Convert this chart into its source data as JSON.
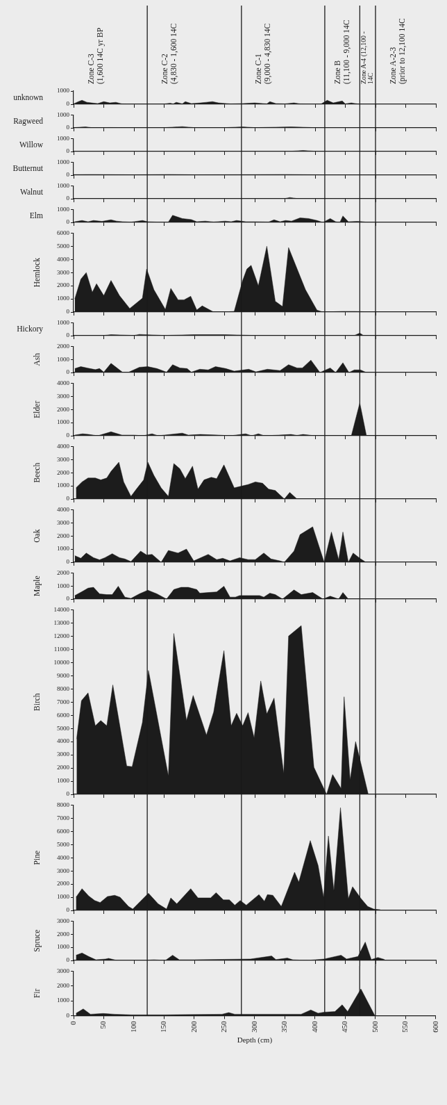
{
  "chart_data": [
    {
      "type": "area",
      "ylabel": "unknown",
      "color": "#1c1c1c",
      "tick_labels": "y",
      "xlim": [
        0,
        600
      ],
      "xticks": [
        0,
        50,
        100,
        150,
        200,
        250,
        300,
        350,
        400,
        450,
        500,
        550,
        600
      ],
      "ylim": [
        0,
        1000
      ],
      "yticks": [
        0,
        1000
      ],
      "annotations": [
        "Zone C-3\n(1,600 14C yr BP",
        "Zone C-2\n(4,830 - 1,600 14C",
        "Zone C-1\n(9,000 - 4,830 14C",
        "Zone B\n(11,100 - 9,000 14C",
        "Zone A-4 (12,100 -\n14C",
        "Zone A-2-3\n(prior to 12,100 14C"
      ],
      "ref_lines": [
        {
          "axis": "x",
          "value": 122
        },
        {
          "axis": "x",
          "value": 278
        },
        {
          "axis": "x",
          "value": 416
        },
        {
          "axis": "x",
          "value": 474
        },
        {
          "axis": "x",
          "value": 500
        }
      ],
      "x": [
        0,
        8,
        14,
        22,
        30,
        40,
        50,
        60,
        70,
        80,
        100,
        150,
        160,
        165,
        170,
        180,
        185,
        195,
        210,
        220,
        230,
        240,
        260,
        280,
        300,
        320,
        325,
        335,
        350,
        365,
        375,
        410,
        420,
        430,
        445,
        450,
        460,
        470,
        480,
        500
      ],
      "values": [
        30,
        200,
        300,
        150,
        100,
        50,
        200,
        100,
        150,
        30,
        20,
        20,
        80,
        20,
        150,
        30,
        200,
        50,
        100,
        150,
        200,
        100,
        30,
        50,
        100,
        30,
        200,
        50,
        30,
        100,
        30,
        20,
        300,
        100,
        250,
        30,
        100,
        30,
        0,
        0
      ]
    },
    {
      "type": "area",
      "ylabel": "Ragweed",
      "color": "#1c1c1c",
      "tick_labels": "y",
      "xlim": [
        0,
        600
      ],
      "xticks": [
        0,
        50,
        100,
        150,
        200,
        250,
        300,
        350,
        400,
        450,
        500,
        550,
        600
      ],
      "ylim": [
        0,
        1000
      ],
      "yticks": [
        0,
        1000
      ],
      "ref_lines": [
        {
          "axis": "x",
          "value": 122
        },
        {
          "axis": "x",
          "value": 278
        },
        {
          "axis": "x",
          "value": 416
        },
        {
          "axis": "x",
          "value": 474
        },
        {
          "axis": "x",
          "value": 500
        }
      ],
      "x": [
        0,
        10,
        20,
        30,
        60,
        100,
        150,
        180,
        200,
        250,
        280,
        300,
        360,
        380,
        400,
        450,
        500
      ],
      "values": [
        20,
        50,
        80,
        20,
        30,
        20,
        20,
        100,
        20,
        20,
        80,
        20,
        80,
        50,
        20,
        20,
        0
      ]
    },
    {
      "type": "area",
      "ylabel": "Willow",
      "color": "#1c1c1c",
      "tick_labels": "y",
      "xlim": [
        0,
        600
      ],
      "xticks": [
        0,
        50,
        100,
        150,
        200,
        250,
        300,
        350,
        400,
        450,
        500,
        550,
        600
      ],
      "ylim": [
        0,
        1000
      ],
      "yticks": [
        0,
        1000
      ],
      "ref_lines": [
        {
          "axis": "x",
          "value": 122
        },
        {
          "axis": "x",
          "value": 278
        },
        {
          "axis": "x",
          "value": 416
        },
        {
          "axis": "x",
          "value": 474
        },
        {
          "axis": "x",
          "value": 500
        }
      ],
      "x": [
        0,
        100,
        200,
        300,
        360,
        380,
        400,
        500
      ],
      "values": [
        20,
        20,
        20,
        20,
        20,
        80,
        20,
        0
      ]
    },
    {
      "type": "area",
      "ylabel": "Butternut",
      "color": "#1c1c1c",
      "tick_labels": "y",
      "xlim": [
        0,
        600
      ],
      "xticks": [
        0,
        50,
        100,
        150,
        200,
        250,
        300,
        350,
        400,
        450,
        500,
        550,
        600
      ],
      "ylim": [
        0,
        1000
      ],
      "yticks": [
        0,
        1000
      ],
      "ref_lines": [
        {
          "axis": "x",
          "value": 122
        },
        {
          "axis": "x",
          "value": 278
        },
        {
          "axis": "x",
          "value": 416
        },
        {
          "axis": "x",
          "value": 474
        },
        {
          "axis": "x",
          "value": 500
        }
      ],
      "x": [
        0,
        30,
        100,
        160,
        200,
        300,
        350,
        400,
        500
      ],
      "values": [
        40,
        50,
        30,
        50,
        30,
        40,
        50,
        30,
        0
      ]
    },
    {
      "type": "area",
      "ylabel": "Walnut",
      "color": "#1c1c1c",
      "tick_labels": "y",
      "xlim": [
        0,
        600
      ],
      "xticks": [
        0,
        50,
        100,
        150,
        200,
        250,
        300,
        350,
        400,
        450,
        500,
        550,
        600
      ],
      "ylim": [
        0,
        1000
      ],
      "yticks": [
        0,
        1000
      ],
      "ref_lines": [
        {
          "axis": "x",
          "value": 122
        },
        {
          "axis": "x",
          "value": 278
        },
        {
          "axis": "x",
          "value": 416
        },
        {
          "axis": "x",
          "value": 474
        },
        {
          "axis": "x",
          "value": 500
        }
      ],
      "x": [
        0,
        100,
        200,
        300,
        350,
        358,
        370,
        400,
        500
      ],
      "values": [
        20,
        20,
        20,
        20,
        20,
        100,
        20,
        20,
        0
      ]
    },
    {
      "type": "area",
      "ylabel": "Elm",
      "color": "#1c1c1c",
      "tick_labels": "y",
      "xlim": [
        0,
        600
      ],
      "xticks": [
        0,
        50,
        100,
        150,
        200,
        250,
        300,
        350,
        400,
        450,
        500,
        550,
        600
      ],
      "ylim": [
        0,
        1000
      ],
      "yticks": [
        0,
        1000
      ],
      "ref_lines": [
        {
          "axis": "x",
          "value": 122
        },
        {
          "axis": "x",
          "value": 278
        },
        {
          "axis": "x",
          "value": 416
        },
        {
          "axis": "x",
          "value": 474
        },
        {
          "axis": "x",
          "value": 500
        }
      ],
      "x": [
        2,
        14,
        24,
        33,
        47,
        62,
        71,
        81,
        95,
        114,
        123,
        142,
        157,
        164,
        180,
        195,
        204,
        218,
        232,
        251,
        261,
        270,
        285,
        299,
        323,
        332,
        342,
        351,
        361,
        375,
        389,
        403,
        413,
        425,
        434,
        441,
        446,
        455,
        470,
        479,
        489
      ],
      "values": [
        50,
        150,
        50,
        150,
        80,
        200,
        100,
        50,
        20,
        150,
        50,
        20,
        30,
        550,
        300,
        220,
        50,
        100,
        30,
        100,
        50,
        150,
        50,
        50,
        30,
        200,
        50,
        150,
        100,
        350,
        300,
        150,
        0,
        300,
        50,
        0,
        500,
        50,
        80,
        50,
        0
      ]
    },
    {
      "type": "area",
      "ylabel": "Hemlock",
      "color": "#1c1c1c",
      "tick_labels": "y",
      "xlim": [
        0,
        600
      ],
      "xticks": [
        0,
        50,
        100,
        150,
        200,
        250,
        300,
        350,
        400,
        450,
        500,
        550,
        600
      ],
      "ylim": [
        0,
        6000
      ],
      "yticks": [
        0,
        1000,
        2000,
        3000,
        4000,
        5000,
        6000
      ],
      "ref_lines": [
        {
          "axis": "x",
          "value": 122
        },
        {
          "axis": "x",
          "value": 278
        },
        {
          "axis": "x",
          "value": 416
        },
        {
          "axis": "x",
          "value": 474
        },
        {
          "axis": "x",
          "value": 500
        }
      ],
      "x": [
        2,
        12,
        21,
        31,
        38,
        50,
        62,
        76,
        93,
        114,
        121,
        133,
        152,
        161,
        173,
        183,
        194,
        204,
        213,
        232,
        247,
        266,
        280,
        287,
        294,
        306,
        320,
        334,
        346,
        356,
        384,
        403,
        413,
        446,
        465,
        500
      ],
      "values": [
        1000,
        2500,
        3000,
        1500,
        2150,
        1250,
        2400,
        1250,
        270,
        1050,
        3270,
        1700,
        200,
        1800,
        930,
        930,
        1200,
        160,
        470,
        0,
        0,
        50,
        2400,
        3270,
        3550,
        2000,
        5000,
        820,
        420,
        4900,
        1700,
        150,
        0,
        50,
        50,
        0
      ]
    },
    {
      "type": "area",
      "ylabel": "Hickory",
      "color": "#1c1c1c",
      "tick_labels": "y",
      "xlim": [
        0,
        600
      ],
      "xticks": [
        0,
        50,
        100,
        150,
        200,
        250,
        300,
        350,
        400,
        450,
        500,
        550,
        600
      ],
      "ylim": [
        0,
        1000
      ],
      "yticks": [
        0,
        1000
      ],
      "ref_lines": [
        {
          "axis": "x",
          "value": 122
        },
        {
          "axis": "x",
          "value": 278
        },
        {
          "axis": "x",
          "value": 416
        },
        {
          "axis": "x",
          "value": 474
        },
        {
          "axis": "x",
          "value": 500
        }
      ],
      "x": [
        0,
        50,
        62,
        100,
        109,
        150,
        200,
        250,
        300,
        400,
        465,
        474,
        480,
        500
      ],
      "values": [
        20,
        20,
        80,
        20,
        100,
        20,
        80,
        80,
        20,
        20,
        20,
        200,
        20,
        0
      ]
    },
    {
      "type": "area",
      "ylabel": "Ash",
      "color": "#1c1c1c",
      "tick_labels": "y",
      "xlim": [
        0,
        600
      ],
      "xticks": [
        0,
        50,
        100,
        150,
        200,
        250,
        300,
        350,
        400,
        450,
        500,
        550,
        600
      ],
      "ylim": [
        0,
        2000
      ],
      "yticks": [
        0,
        1000,
        2000
      ],
      "ref_lines": [
        {
          "axis": "x",
          "value": 122
        },
        {
          "axis": "x",
          "value": 278
        },
        {
          "axis": "x",
          "value": 416
        },
        {
          "axis": "x",
          "value": 474
        },
        {
          "axis": "x",
          "value": 500
        }
      ],
      "x": [
        2,
        12,
        24,
        36,
        43,
        50,
        62,
        81,
        90,
        109,
        123,
        138,
        154,
        164,
        176,
        188,
        195,
        209,
        223,
        235,
        252,
        266,
        290,
        302,
        321,
        342,
        356,
        370,
        379,
        393,
        408,
        425,
        434,
        446,
        456,
        465,
        475,
        485
      ],
      "values": [
        300,
        450,
        330,
        220,
        300,
        30,
        700,
        20,
        0,
        400,
        450,
        300,
        30,
        600,
        350,
        300,
        30,
        250,
        200,
        450,
        300,
        100,
        250,
        50,
        250,
        150,
        600,
        350,
        350,
        950,
        0,
        350,
        0,
        750,
        0,
        200,
        200,
        0
      ]
    },
    {
      "type": "area",
      "ylabel": "Elder",
      "color": "#1c1c1c",
      "tick_labels": "y",
      "xlim": [
        0,
        600
      ],
      "xticks": [
        0,
        50,
        100,
        150,
        200,
        250,
        300,
        350,
        400,
        450,
        500,
        550,
        600
      ],
      "ylim": [
        0,
        4000
      ],
      "yticks": [
        0,
        1000,
        2000,
        3000,
        4000
      ],
      "ref_lines": [
        {
          "axis": "x",
          "value": 122
        },
        {
          "axis": "x",
          "value": 278
        },
        {
          "axis": "x",
          "value": 416
        },
        {
          "axis": "x",
          "value": 474
        },
        {
          "axis": "x",
          "value": 500
        }
      ],
      "x": [
        2,
        15,
        25,
        40,
        62,
        80,
        100,
        115,
        130,
        140,
        180,
        190,
        210,
        240,
        260,
        285,
        295,
        306,
        316,
        340,
        360,
        370,
        380,
        400,
        460,
        474,
        485,
        500
      ],
      "values": [
        50,
        150,
        100,
        0,
        300,
        50,
        50,
        0,
        150,
        0,
        200,
        50,
        100,
        50,
        0,
        150,
        0,
        150,
        0,
        50,
        100,
        30,
        100,
        0,
        0,
        2500,
        0,
        0
      ]
    },
    {
      "type": "area",
      "ylabel": "Beech",
      "color": "#1c1c1c",
      "tick_labels": "y",
      "xlim": [
        0,
        600
      ],
      "xticks": [
        0,
        50,
        100,
        150,
        200,
        250,
        300,
        350,
        400,
        450,
        500,
        550,
        600
      ],
      "ylim": [
        0,
        4000
      ],
      "yticks": [
        0,
        1000,
        2000,
        3000,
        4000
      ],
      "ref_lines": [
        {
          "axis": "x",
          "value": 122
        },
        {
          "axis": "x",
          "value": 278
        },
        {
          "axis": "x",
          "value": 416
        },
        {
          "axis": "x",
          "value": 474
        },
        {
          "axis": "x",
          "value": 500
        }
      ],
      "x": [
        4,
        14,
        24,
        36,
        45,
        55,
        62,
        75,
        83,
        95,
        104,
        116,
        123,
        133,
        145,
        157,
        166,
        176,
        185,
        197,
        206,
        216,
        228,
        237,
        249,
        266,
        280,
        289,
        301,
        313,
        323,
        334,
        342,
        349,
        358,
        370,
        500
      ],
      "values": [
        850,
        1300,
        1600,
        1600,
        1450,
        1600,
        2100,
        2800,
        1300,
        200,
        750,
        1450,
        2800,
        1800,
        850,
        200,
        2700,
        2300,
        1550,
        2500,
        750,
        1450,
        1650,
        1550,
        2600,
        850,
        1000,
        1100,
        1300,
        1200,
        750,
        650,
        300,
        0,
        500,
        0,
        0
      ]
    },
    {
      "type": "area",
      "ylabel": "Oak",
      "color": "#1c1c1c",
      "tick_labels": "y",
      "xlim": [
        0,
        600
      ],
      "xticks": [
        0,
        50,
        100,
        150,
        200,
        250,
        300,
        350,
        400,
        450,
        500,
        550,
        600
      ],
      "ylim": [
        0,
        4000
      ],
      "yticks": [
        0,
        1000,
        2000,
        3000,
        4000
      ],
      "ref_lines": [
        {
          "axis": "x",
          "value": 122
        },
        {
          "axis": "x",
          "value": 278
        },
        {
          "axis": "x",
          "value": 416
        },
        {
          "axis": "x",
          "value": 474
        },
        {
          "axis": "x",
          "value": 500
        }
      ],
      "x": [
        2,
        12,
        21,
        33,
        43,
        52,
        64,
        76,
        85,
        95,
        111,
        121,
        130,
        145,
        157,
        173,
        187,
        199,
        223,
        237,
        247,
        259,
        275,
        289,
        301,
        315,
        327,
        342,
        349,
        365,
        375,
        396,
        415,
        427,
        439,
        446,
        455,
        463,
        474,
        484,
        500
      ],
      "values": [
        500,
        300,
        700,
        350,
        180,
        350,
        650,
        350,
        250,
        50,
        850,
        550,
        600,
        0,
        900,
        700,
        1000,
        100,
        600,
        200,
        300,
        100,
        350,
        200,
        200,
        700,
        250,
        100,
        0,
        850,
        2100,
        2700,
        0,
        2300,
        200,
        2300,
        0,
        700,
        300,
        0,
        0
      ]
    },
    {
      "type": "area",
      "ylabel": "Maple",
      "color": "#1c1c1c",
      "tick_labels": "y",
      "xlim": [
        0,
        600
      ],
      "xticks": [
        0,
        50,
        100,
        150,
        200,
        250,
        300,
        350,
        400,
        450,
        500,
        550,
        600
      ],
      "ylim": [
        0,
        2000
      ],
      "yticks": [
        0,
        1000,
        2000
      ],
      "ref_lines": [
        {
          "axis": "x",
          "value": 122
        },
        {
          "axis": "x",
          "value": 278
        },
        {
          "axis": "x",
          "value": 416
        },
        {
          "axis": "x",
          "value": 474
        },
        {
          "axis": "x",
          "value": 500
        }
      ],
      "x": [
        2,
        14,
        24,
        33,
        43,
        55,
        64,
        74,
        85,
        95,
        109,
        123,
        138,
        154,
        166,
        178,
        190,
        204,
        209,
        223,
        237,
        249,
        259,
        268,
        275,
        289,
        308,
        315,
        325,
        334,
        346,
        365,
        377,
        396,
        413,
        425,
        439,
        446,
        455,
        500
      ],
      "values": [
        270,
        570,
        840,
        900,
        400,
        340,
        340,
        980,
        150,
        50,
        400,
        680,
        400,
        0,
        730,
        900,
        900,
        730,
        450,
        500,
        550,
        980,
        150,
        150,
        270,
        270,
        270,
        150,
        450,
        340,
        0,
        700,
        340,
        500,
        0,
        220,
        0,
        500,
        0,
        0
      ]
    },
    {
      "type": "area",
      "ylabel": "Birch",
      "color": "#1c1c1c",
      "tick_labels": "y",
      "xlim": [
        0,
        600
      ],
      "xticks": [
        0,
        50,
        100,
        150,
        200,
        250,
        300,
        350,
        400,
        450,
        500,
        550,
        600
      ],
      "ylim": [
        0,
        14000
      ],
      "yticks": [
        0,
        1000,
        2000,
        3000,
        4000,
        5000,
        6000,
        7000,
        8000,
        9000,
        10000,
        11000,
        12000,
        13000,
        14000
      ],
      "ref_lines": [
        {
          "axis": "x",
          "value": 122
        },
        {
          "axis": "x",
          "value": 278
        },
        {
          "axis": "x",
          "value": 416
        },
        {
          "axis": "x",
          "value": 474
        },
        {
          "axis": "x",
          "value": 500
        }
      ],
      "x": [
        5,
        13,
        24,
        36,
        45,
        55,
        65,
        88,
        97,
        114,
        124,
        157,
        166,
        187,
        198,
        220,
        232,
        249,
        261,
        270,
        280,
        289,
        299,
        310,
        320,
        332,
        348,
        356,
        377,
        398,
        412,
        419,
        429,
        443,
        448,
        458,
        467,
        476,
        488,
        500
      ],
      "values": [
        4200,
        7100,
        7700,
        5200,
        5600,
        5200,
        8300,
        2150,
        2100,
        5450,
        9400,
        1400,
        12200,
        5600,
        7500,
        4500,
        6250,
        10900,
        5200,
        6150,
        5200,
        6200,
        4300,
        8600,
        6100,
        7300,
        1600,
        12000,
        12800,
        2050,
        680,
        0,
        1500,
        450,
        7400,
        1100,
        4000,
        2300,
        0,
        0
      ]
    },
    {
      "type": "area",
      "ylabel": "Pine",
      "color": "#1c1c1c",
      "tick_labels": "y",
      "xlim": [
        0,
        600
      ],
      "xticks": [
        0,
        50,
        100,
        150,
        200,
        250,
        300,
        350,
        400,
        450,
        500,
        550,
        600
      ],
      "ylim": [
        0,
        8000
      ],
      "yticks": [
        0,
        1000,
        2000,
        3000,
        4000,
        5000,
        6000,
        7000,
        8000
      ],
      "ref_lines": [
        {
          "axis": "x",
          "value": 122
        },
        {
          "axis": "x",
          "value": 278
        },
        {
          "axis": "x",
          "value": 416
        },
        {
          "axis": "x",
          "value": 474
        },
        {
          "axis": "x",
          "value": 500
        }
      ],
      "x": [
        4,
        14,
        25,
        35,
        44,
        56,
        68,
        77,
        91,
        98,
        124,
        140,
        154,
        161,
        171,
        194,
        206,
        227,
        236,
        248,
        258,
        267,
        276,
        286,
        307,
        316,
        321,
        330,
        344,
        366,
        373,
        392,
        405,
        414,
        422,
        431,
        442,
        455,
        462,
        476,
        487,
        497,
        508
      ],
      "values": [
        1000,
        1650,
        1100,
        750,
        600,
        1050,
        1150,
        1000,
        300,
        100,
        1300,
        500,
        100,
        950,
        500,
        1650,
        950,
        950,
        1350,
        800,
        800,
        400,
        750,
        400,
        1200,
        700,
        1200,
        1150,
        300,
        2900,
        2150,
        5300,
        3400,
        1000,
        5650,
        1500,
        7800,
        900,
        1800,
        900,
        300,
        100,
        50
      ]
    },
    {
      "type": "area",
      "ylabel": "Spruce",
      "color": "#1c1c1c",
      "tick_labels": "y",
      "xlim": [
        0,
        600
      ],
      "xticks": [
        0,
        50,
        100,
        150,
        200,
        250,
        300,
        350,
        400,
        450,
        500,
        550,
        600
      ],
      "ylim": [
        0,
        3000
      ],
      "yticks": [
        0,
        1000,
        2000,
        3000
      ],
      "ref_lines": [
        {
          "axis": "x",
          "value": 122
        },
        {
          "axis": "x",
          "value": 278
        },
        {
          "axis": "x",
          "value": 416
        },
        {
          "axis": "x",
          "value": 474
        },
        {
          "axis": "x",
          "value": 500
        }
      ],
      "x": [
        4,
        14,
        25,
        37,
        53,
        58,
        72,
        114,
        133,
        152,
        164,
        175,
        199,
        293,
        328,
        335,
        354,
        363,
        386,
        415,
        443,
        452,
        471,
        483,
        493,
        504,
        515
      ],
      "values": [
        400,
        570,
        300,
        50,
        110,
        160,
        0,
        0,
        50,
        0,
        400,
        50,
        50,
        110,
        340,
        70,
        180,
        50,
        0,
        110,
        400,
        110,
        300,
        1400,
        70,
        230,
        70
      ]
    },
    {
      "type": "area",
      "ylabel": "Fir",
      "xlabel": "Depth (cm)",
      "color": "#1c1c1c",
      "xlim": [
        0,
        600
      ],
      "xticks": [
        0,
        50,
        100,
        150,
        200,
        250,
        300,
        350,
        400,
        450,
        500,
        550,
        600
      ],
      "ylim": [
        0,
        3000
      ],
      "yticks": [
        0,
        1000,
        2000,
        3000
      ],
      "ref_lines": [
        {
          "axis": "x",
          "value": 122
        },
        {
          "axis": "x",
          "value": 278
        },
        {
          "axis": "x",
          "value": 416
        },
        {
          "axis": "x",
          "value": 474
        },
        {
          "axis": "x",
          "value": 500
        }
      ],
      "x": [
        4,
        16,
        28,
        49,
        68,
        96,
        152,
        246,
        257,
        267,
        377,
        393,
        405,
        415,
        433,
        445,
        454,
        476,
        499
      ],
      "values": [
        150,
        450,
        90,
        140,
        90,
        50,
        50,
        90,
        200,
        90,
        90,
        380,
        160,
        230,
        270,
        730,
        270,
        1800,
        0
      ]
    }
  ]
}
